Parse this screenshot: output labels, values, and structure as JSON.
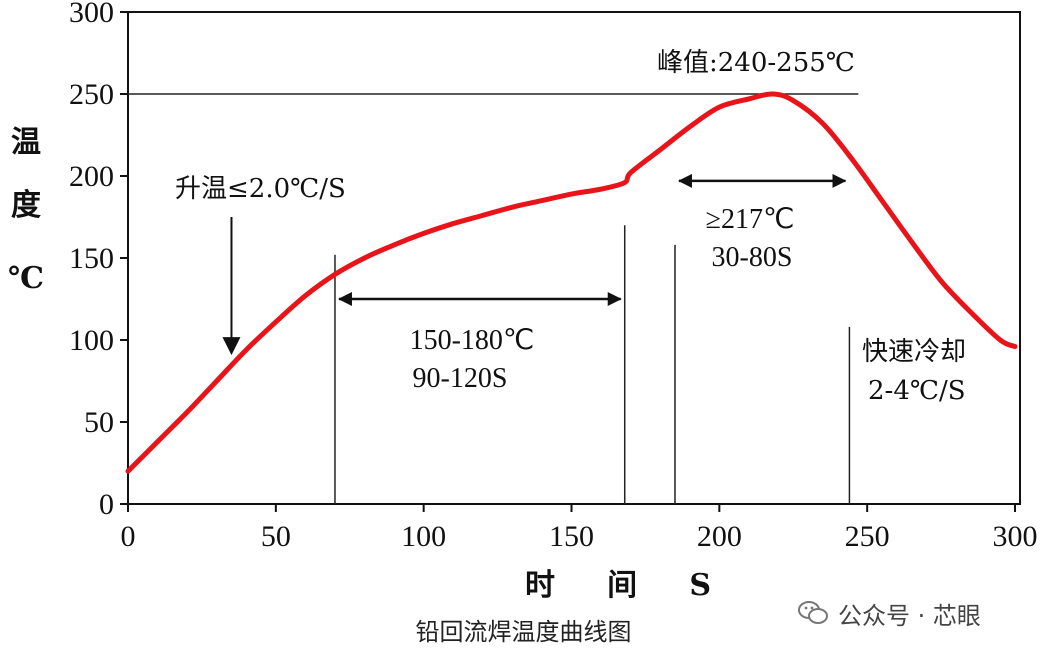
{
  "chart_data": {
    "type": "line",
    "title": "",
    "xlabel": "时     间     S",
    "ylabel_chars": [
      "温",
      "度",
      "℃"
    ],
    "xlim": [
      0,
      300
    ],
    "ylim": [
      0,
      300
    ],
    "x_ticks": [
      0,
      50,
      100,
      150,
      200,
      250,
      300
    ],
    "x_tick_labels": [
      "0",
      "50",
      "100",
      "150",
      "200",
      "250",
      "300"
    ],
    "y_ticks": [
      0,
      50,
      100,
      150,
      200,
      250,
      300
    ],
    "y_tick_labels": [
      "0",
      "50",
      "100",
      "150",
      "200",
      "250",
      "300"
    ],
    "grid": false,
    "series": [
      {
        "color": "#e8141a",
        "x": [
          0,
          10,
          20,
          30,
          40,
          50,
          60,
          70,
          80,
          90,
          100,
          110,
          120,
          130,
          140,
          150,
          160,
          168,
          170,
          180,
          190,
          200,
          210,
          218,
          225,
          235,
          245,
          255,
          265,
          275,
          285,
          295,
          300
        ],
        "y": [
          20,
          38,
          56,
          75,
          94,
          111,
          127,
          140,
          150,
          158,
          165,
          171,
          176,
          181,
          185,
          189,
          192,
          196,
          202,
          216,
          230,
          242,
          247,
          250,
          246,
          232,
          210,
          185,
          160,
          136,
          117,
          100,
          96
        ]
      }
    ],
    "reference_lines": {
      "horizontal": [
        250
      ],
      "vertical": [
        70,
        168,
        185,
        244
      ]
    },
    "annotations": [
      {
        "text": "升温≤2.0℃/S",
        "arrow_x": 35,
        "arrow_from_y": 175,
        "arrow_to_y": 92
      },
      {
        "lines": [
          "150-180℃",
          "90-120S"
        ],
        "span": [
          70,
          168
        ]
      },
      {
        "lines": [
          "≥217℃",
          "30-80S"
        ],
        "span": [
          185,
          244
        ]
      },
      {
        "text": "峰值:240-255℃"
      },
      {
        "lines": [
          "快速冷却",
          "2-4℃/S"
        ]
      }
    ]
  },
  "caption": "铅回流焊温度曲线图",
  "watermark": {
    "icon": "wechat-icon",
    "text": "公众号 · 芯眼"
  }
}
